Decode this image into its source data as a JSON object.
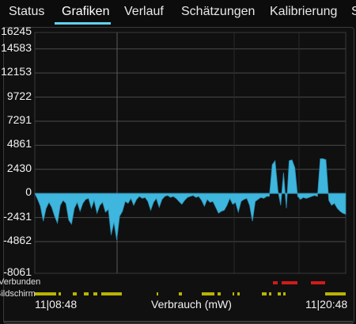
{
  "tabs": [
    {
      "label": "Status",
      "active": false
    },
    {
      "label": "Grafiken",
      "active": true
    },
    {
      "label": "Verlauf",
      "active": false
    },
    {
      "label": "Schätzungen",
      "active": false
    },
    {
      "label": "Kalibrierung",
      "active": false
    },
    {
      "label": "S",
      "active": false
    }
  ],
  "colors": {
    "accent": "#5fd3f0",
    "series": "#3fb6dd",
    "connected": "#d11a1a",
    "screen": "#b9b400",
    "grid": "#4a4a4a"
  },
  "status_rows": {
    "connected_label": "Verbunden",
    "screen_label": "Bildschirm"
  },
  "x_start_label": "11|08:48",
  "x_end_label": "11|20:48",
  "chart_data": {
    "type": "area",
    "xlabel": "Verbrauch (mW)",
    "ylabel": "",
    "y_ticks": [
      "16245",
      "14583",
      "12153",
      "9722",
      "7291",
      "4861",
      "2430",
      "0",
      "-2431",
      "-4862",
      "-8061"
    ],
    "ylim": [
      -8061,
      16245
    ],
    "x_start": "11|08:48",
    "x_end": "11|20:48",
    "grid": true,
    "series": [
      {
        "values": [
          0,
          -600,
          -1300,
          -2800,
          -1500,
          -900,
          -1400,
          -2300,
          -3000,
          -1200,
          -700,
          -1000,
          -2700,
          -3100,
          -1500,
          -900,
          -1800,
          -1000,
          -600,
          -500,
          -1500,
          -700,
          -2000,
          -1200,
          -900,
          -1900,
          -1600,
          -4200,
          -2900,
          -4700,
          -2300,
          -1800,
          -800,
          -1000,
          -500,
          -1200,
          -600,
          -300,
          -500,
          -400,
          -800,
          -1700,
          -900,
          -500,
          -1400,
          -600,
          -300,
          -200,
          -400,
          -300,
          -500,
          -800,
          -1100,
          -700,
          -400,
          -300,
          -200,
          -400,
          -300,
          -700,
          -1300,
          -600,
          -900,
          -800,
          -1400,
          -2000,
          -1800,
          -1700,
          -1200,
          -500,
          -1100,
          -900,
          -1900,
          -800,
          -600,
          -500,
          -1200,
          -2800,
          -800,
          -600,
          -400,
          -500,
          -300,
          -300,
          2900,
          3300,
          300,
          -1200,
          2100,
          -1500,
          3300,
          3400,
          2600,
          -300,
          -600,
          -400,
          -500,
          -400,
          -300,
          -200,
          -300,
          3500,
          3500,
          3400,
          -700,
          -1200,
          -1000,
          -1500,
          -1800,
          -2000,
          -2100
        ]
      }
    ]
  }
}
